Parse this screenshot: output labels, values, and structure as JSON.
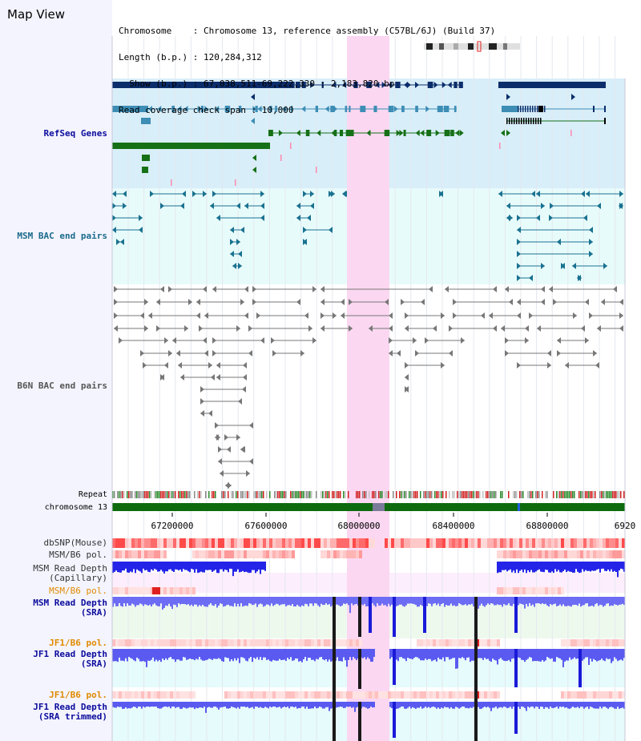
{
  "header": {
    "title": "Map View",
    "lines": [
      "Chromosome    : Chromosome 13, reference assembly (C57BL/6J) (Build 37)",
      "Length (b.p.) : 120,284,312",
      "  Show (b.p.) : 67,038,511-69,222,330 : 2,183,820 bp",
      "Read coverage check span : 10,000"
    ]
  },
  "tracks": {
    "refseq": "RefSeq Genes",
    "msm_bac": "MSM BAC end pairs",
    "b6n_bac": "B6N BAC end pairs",
    "repeat": "Repeat",
    "chromosome": "chromosome 13",
    "dbsnp": "dbSNP(Mouse)",
    "msm_pol": "MSM/B6 pol.",
    "msm_cap_1": "MSM Read Depth",
    "msm_cap_2": "(Capillary)",
    "msm_pol2": "MSM/B6 pol.",
    "msm_sra_1": "MSM Read Depth",
    "msm_sra_2": "(SRA)",
    "jf1_pol": "JF1/B6 pol.",
    "jf1_sra_1": "JF1 Read Depth",
    "jf1_sra_2": "(SRA)",
    "jf1_pol2": "JF1/B6 pol.",
    "jf1_trim_1": "JF1 Read Depth",
    "jf1_trim_2": "(SRA trimmed)"
  },
  "axis": {
    "ticks": [
      "67200000",
      "67600000",
      "68000000",
      "68400000",
      "68800000",
      "6920"
    ]
  },
  "colors": {
    "refseq_bg": "#d8eef9",
    "msm_bg": "#e8fbfb",
    "highlight": "#fbd7f1",
    "navy": "#0b2d6b",
    "steel": "#3d8db5",
    "green": "#167016",
    "teal": "#1a7290",
    "gray": "#777777",
    "chrom": "#0d6b0d",
    "depth_blue": "#4040f0"
  }
}
